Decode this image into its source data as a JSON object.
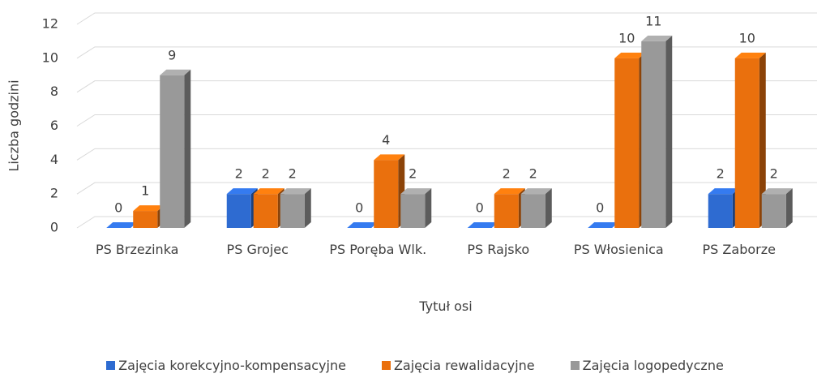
{
  "chart_data": {
    "type": "bar3d",
    "categories": [
      "PS Brzezinka",
      "PS Grojec",
      "PS Poręba Wlk.",
      "PS Rajsko",
      "PS Włosienica",
      "PS Zaborze"
    ],
    "series": [
      {
        "name": "Zajęcia korekcyjno-kompensacyjne",
        "color": "#2e6bd1",
        "values": [
          0,
          2,
          0,
          0,
          0,
          2
        ]
      },
      {
        "name": "Zajęcia rewalidacyjne",
        "color": "#ea700d",
        "values": [
          1,
          2,
          4,
          2,
          10,
          10
        ]
      },
      {
        "name": "Zajęcia logopedyczne",
        "color": "#999999",
        "values": [
          9,
          2,
          2,
          2,
          11,
          2
        ]
      }
    ],
    "ylabel": "Liczba godzini",
    "xlabel": "Tytuł osi",
    "ylim": [
      0,
      12
    ],
    "yticks": [
      0,
      2,
      4,
      6,
      8,
      10,
      12
    ],
    "grid": true,
    "legend": "bottom"
  }
}
